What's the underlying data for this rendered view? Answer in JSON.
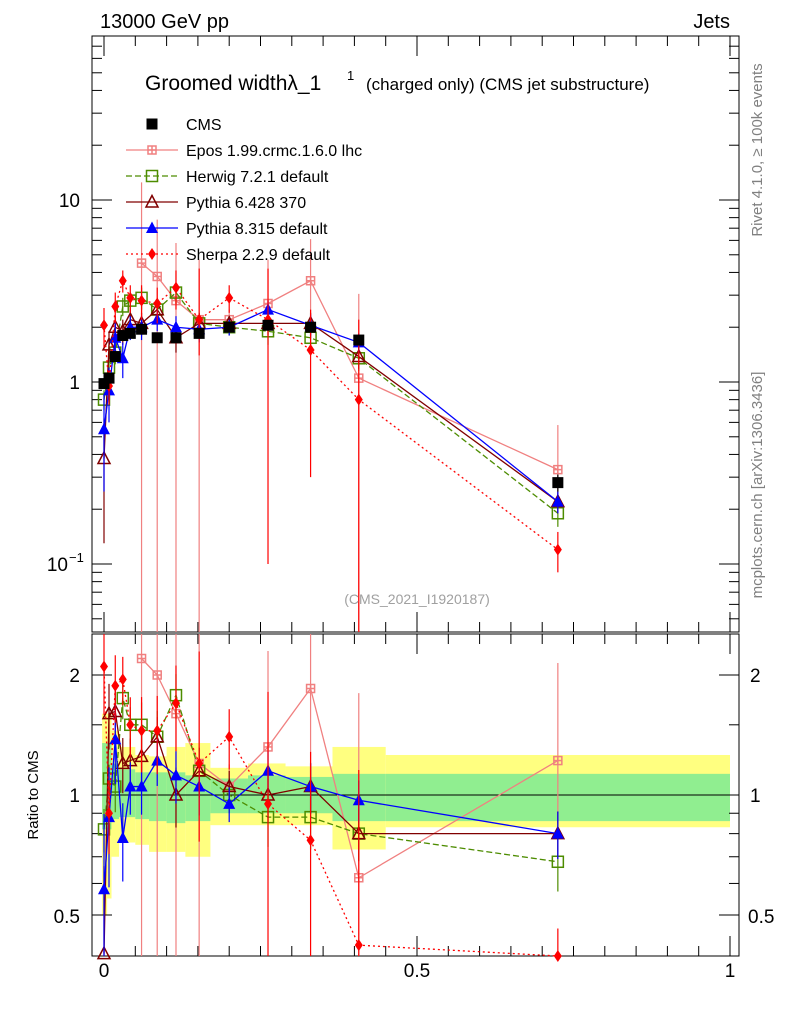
{
  "header": {
    "energy_label": "13000 GeV pp",
    "category_label": "Jets",
    "side_rivet": "Rivet 4.1.0, ≥ 100k events",
    "side_mcplots": "mcplots.cern.ch [arXiv:1306.3436]",
    "analysis_id": "(CMS_2021_I1920187)"
  },
  "chart_data": {
    "type": "scatter",
    "title_main": "Groomed widthλ_1",
    "title_sup": "1",
    "title_rest": "(charged only) (CMS jet substructure)",
    "x_range": [
      -0.02,
      1.0
    ],
    "y_range_log": [
      0.04,
      80
    ],
    "ratio_range": [
      0.4,
      2.4
    ],
    "ratio_ylabel": "Ratio to CMS",
    "x_ticks": [
      "0",
      "0.5",
      "1"
    ],
    "y_ticks": [
      "10",
      "1",
      "10^-1"
    ],
    "y_tick_main": "10",
    "y_tick_one": "1",
    "y_tick_tenth_base": "10",
    "y_tick_tenth_exp": "−1",
    "ratio_ticks": [
      "2",
      "1",
      "0.5"
    ],
    "x": [
      0.0,
      0.008,
      0.018,
      0.03,
      0.042,
      0.06,
      0.085,
      0.115,
      0.152,
      0.2,
      0.262,
      0.33,
      0.407,
      0.725
    ],
    "bin_edges": [
      -0.003,
      0.005,
      0.012,
      0.024,
      0.036,
      0.05,
      0.072,
      0.1,
      0.13,
      0.17,
      0.23,
      0.29,
      0.365,
      0.45,
      1.0
    ],
    "mc_band_ratio": [
      0.63,
      0.75,
      0.85,
      0.9,
      0.9,
      0.88,
      0.88,
      0.88,
      0.9,
      0.93,
      0.93,
      0.93,
      0.9,
      0.92,
      0.92,
      0.92,
      0.92,
      0.92
    ],
    "band_green": [
      [
        0.82,
        1.35
      ],
      [
        0.82,
        1.35
      ],
      [
        0.87,
        1.2
      ],
      [
        0.88,
        1.16
      ],
      [
        0.88,
        1.16
      ],
      [
        0.87,
        1.14
      ],
      [
        0.86,
        1.14
      ],
      [
        0.85,
        1.14
      ],
      [
        0.86,
        1.12
      ],
      [
        0.9,
        1.1
      ],
      [
        0.9,
        1.12
      ],
      [
        0.9,
        1.11
      ],
      [
        0.86,
        1.13
      ],
      [
        0.86,
        1.13
      ]
    ],
    "band_yellow": [
      [
        0.5,
        1.6
      ],
      [
        0.55,
        1.6
      ],
      [
        0.7,
        1.45
      ],
      [
        0.76,
        1.32
      ],
      [
        0.76,
        1.32
      ],
      [
        0.75,
        1.26
      ],
      [
        0.72,
        1.25
      ],
      [
        0.72,
        1.32
      ],
      [
        0.7,
        1.35
      ],
      [
        0.84,
        1.17
      ],
      [
        0.84,
        1.2
      ],
      [
        0.84,
        1.18
      ],
      [
        0.73,
        1.32
      ],
      [
        0.83,
        1.26
      ]
    ],
    "series": [
      {
        "name": "CMS",
        "color": "#000000",
        "marker": "square",
        "dash": "none",
        "values": [
          0.98,
          1.05,
          1.38,
          1.8,
          1.85,
          1.95,
          1.75,
          1.75,
          1.85,
          2.0,
          2.05,
          2.0,
          1.7,
          0.28
        ],
        "ratio": [
          1,
          1,
          1,
          1,
          1,
          1,
          1,
          1,
          1,
          1,
          1,
          1,
          1,
          1
        ],
        "err_lo": [
          0.05,
          0.05,
          0.06,
          0.08,
          0.1,
          0.12,
          0.08,
          0.08,
          0.08,
          0.1,
          0.12,
          0.12,
          0.1,
          0.03
        ],
        "err_hi": [
          0.05,
          0.05,
          0.06,
          0.08,
          0.1,
          0.12,
          0.08,
          0.08,
          0.08,
          0.1,
          0.12,
          0.12,
          0.1,
          0.03
        ]
      },
      {
        "name": "Epos 1.99.crmc.1.6.0 lhc",
        "color": "#f08080",
        "marker": "cross-square",
        "dash": "none",
        "values": [
          null,
          null,
          null,
          null,
          null,
          4.5,
          3.8,
          2.8,
          2.2,
          2.2,
          2.7,
          3.6,
          1.05,
          0.33
        ],
        "ratio": [
          null,
          null,
          null,
          null,
          null,
          2.2,
          2.0,
          1.6,
          1.2,
          1.05,
          1.32,
          1.85,
          0.62,
          1.22
        ],
        "err_lo": [
          null,
          null,
          null,
          null,
          null,
          4.5,
          3.8,
          2.8,
          2.2,
          0.3,
          0.8,
          1.8,
          1.05,
          0.1
        ],
        "err_hi": [
          null,
          null,
          null,
          null,
          null,
          8,
          4,
          3,
          2.5,
          0.3,
          2,
          2.5,
          2,
          0.25
        ]
      },
      {
        "name": "Herwig 7.2.1 default",
        "color": "#4d8c00",
        "marker": "open-square",
        "dash": "6,3",
        "values": [
          0.8,
          1.2,
          1.45,
          2.6,
          2.8,
          2.9,
          2.5,
          3.1,
          2.1,
          2.0,
          1.9,
          1.75,
          1.35,
          0.19
        ],
        "ratio": [
          0.82,
          1.1,
          1.05,
          1.75,
          1.5,
          1.5,
          1.4,
          1.78,
          1.15,
          1.0,
          0.88,
          0.88,
          0.8,
          0.68
        ],
        "err_lo": [
          0.1,
          0.1,
          0.2,
          0.3,
          0.3,
          0.4,
          0.4,
          0.4,
          0.3,
          0.2,
          0.3,
          0.3,
          0.2,
          0.03
        ],
        "err_hi": [
          0.1,
          0.1,
          0.2,
          0.3,
          0.3,
          0.4,
          0.4,
          0.4,
          0.3,
          0.2,
          0.3,
          0.3,
          0.2,
          0.03
        ]
      },
      {
        "name": "Pythia 6.428 370",
        "color": "#800000",
        "marker": "open-triangle",
        "dash": "none",
        "values": [
          0.38,
          1.6,
          2.0,
          1.9,
          2.2,
          2.1,
          2.5,
          1.75,
          2.1,
          2.1,
          2.1,
          2.1,
          1.38,
          0.22
        ],
        "ratio": [
          0.4,
          1.6,
          1.62,
          1.2,
          1.22,
          1.25,
          1.4,
          1.0,
          1.15,
          1.05,
          1.0,
          1.05,
          0.8,
          0.8
        ],
        "err_lo": [
          0.25,
          0.3,
          0.3,
          0.3,
          0.3,
          0.3,
          0.3,
          0.3,
          0.3,
          0.2,
          0.3,
          0.3,
          0.2,
          0.03
        ],
        "err_hi": [
          0.25,
          0.3,
          0.3,
          0.3,
          0.3,
          0.3,
          0.3,
          0.3,
          0.3,
          0.2,
          0.3,
          0.3,
          0.2,
          0.03
        ]
      },
      {
        "name": "Pythia 8.315 default",
        "color": "#0000ff",
        "marker": "triangle",
        "dash": "none",
        "values": [
          0.55,
          0.9,
          1.75,
          1.35,
          2.0,
          2.0,
          2.2,
          2.0,
          1.95,
          2.0,
          2.5,
          2.05,
          1.65,
          0.22
        ],
        "ratio": [
          0.58,
          0.88,
          1.38,
          0.78,
          1.05,
          1.05,
          1.22,
          1.12,
          1.05,
          0.95,
          1.15,
          1.05,
          0.97,
          0.8
        ],
        "err_lo": [
          0.3,
          0.3,
          0.4,
          0.3,
          0.3,
          0.3,
          0.3,
          0.3,
          0.3,
          0.2,
          0.3,
          0.3,
          0.2,
          0.03
        ],
        "err_hi": [
          0.3,
          0.3,
          0.4,
          0.3,
          0.3,
          0.3,
          0.3,
          0.3,
          0.3,
          0.2,
          0.3,
          0.3,
          0.2,
          0.03
        ]
      },
      {
        "name": "Sherpa 2.2.9 default",
        "color": "#ff0000",
        "marker": "diamond",
        "dash": "2,3",
        "values": [
          2.05,
          0.95,
          2.6,
          3.6,
          2.9,
          2.8,
          2.7,
          3.3,
          2.2,
          2.9,
          2.2,
          1.5,
          0.8,
          0.12
        ],
        "ratio": [
          2.1,
          0.9,
          1.88,
          1.95,
          1.5,
          1.45,
          1.45,
          1.7,
          1.2,
          1.4,
          0.95,
          0.77,
          0.42,
          0.37
        ],
        "err_lo": [
          0.5,
          0.2,
          0.5,
          0.5,
          0.5,
          0.6,
          0.6,
          0.8,
          0.8,
          0.5,
          2.1,
          1.2,
          0.8,
          0.03
        ],
        "err_hi": [
          0.5,
          0.2,
          0.5,
          0.5,
          0.5,
          0.6,
          0.6,
          0.8,
          2.0,
          0.5,
          2.0,
          1.0,
          1.4,
          0.03
        ]
      }
    ]
  }
}
